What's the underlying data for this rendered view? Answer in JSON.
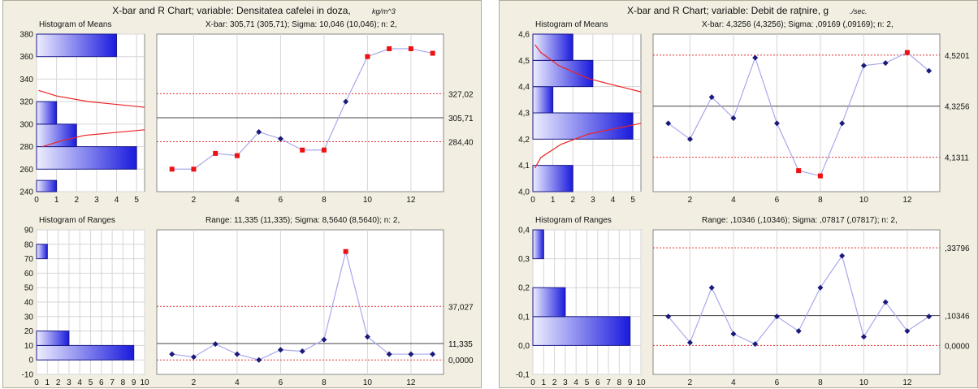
{
  "chart_data": [
    {
      "type": "control-chart",
      "title": "X-bar and R Chart; variable:  Densitatea cafelei in doza,",
      "title_unit": "kg/m^3",
      "means_hist_title": "Histogram of Means",
      "means_subtitle": "X-bar: 305,71 (305,71); Sigma: 10,046 (10,046); n: 2,",
      "ranges_hist_title": "Histogram of Ranges",
      "ranges_subtitle": "Range: 11,335 (11,335); Sigma: 8,5640 (8,5640); n: 2,",
      "xbar_chart": {
        "x": [
          1,
          2,
          3,
          4,
          5,
          6,
          7,
          8,
          9,
          10,
          11,
          12,
          13
        ],
        "values": [
          260,
          260,
          274,
          272,
          293,
          287,
          277,
          277,
          320,
          360,
          367,
          367,
          363
        ],
        "out_of_control": [
          true,
          true,
          true,
          true,
          false,
          false,
          true,
          true,
          false,
          true,
          true,
          true,
          true
        ],
        "ucl": 327.02,
        "center": 305.71,
        "lcl": 284.4,
        "ucl_label": "327,02",
        "center_label": "305,71",
        "lcl_label": "284,40",
        "x_ticks": [
          "2",
          "4",
          "6",
          "8",
          "10",
          "12"
        ],
        "ylim": [
          240,
          380
        ]
      },
      "r_chart": {
        "x": [
          1,
          2,
          3,
          4,
          5,
          6,
          7,
          8,
          9,
          10,
          11,
          12,
          13
        ],
        "values": [
          4,
          2,
          11,
          4,
          0,
          7,
          6,
          14,
          75,
          16,
          4,
          4,
          4
        ],
        "out_of_control": [
          false,
          false,
          false,
          false,
          false,
          false,
          false,
          false,
          true,
          false,
          false,
          false,
          false
        ],
        "ucl": 37.027,
        "center": 11.335,
        "lcl": 0,
        "ucl_label": "37,027",
        "center_label": "11,335",
        "lcl_label": "0,0000",
        "x_ticks": [
          "2",
          "4",
          "6",
          "8",
          "10",
          "12"
        ],
        "ylim": [
          -10,
          90
        ]
      },
      "means_histogram": {
        "y_ticks": [
          "240",
          "260",
          "280",
          "300",
          "320",
          "340",
          "360",
          "380"
        ],
        "x_ticks": [
          "0",
          "1",
          "2",
          "3",
          "4",
          "5"
        ],
        "xlim": [
          0,
          5.4
        ],
        "ylim": [
          240,
          380
        ],
        "bins": [
          [
            240,
            250,
            1
          ],
          [
            250,
            260,
            0
          ],
          [
            260,
            280,
            5
          ],
          [
            280,
            300,
            2
          ],
          [
            300,
            320,
            1
          ],
          [
            340,
            360,
            0
          ],
          [
            360,
            380,
            4
          ]
        ],
        "curve": [
          [
            280,
            0.3
          ],
          [
            285,
            1.2
          ],
          [
            290,
            2.4
          ],
          [
            295,
            5.4
          ]
        ],
        "curve2": [
          [
            315,
            5.4
          ],
          [
            320,
            2.6
          ],
          [
            325,
            1.0
          ],
          [
            330,
            0.1
          ]
        ]
      },
      "ranges_histogram": {
        "y_ticks": [
          "-10",
          "0",
          "10",
          "20",
          "30",
          "40",
          "50",
          "60",
          "70",
          "80",
          "90"
        ],
        "x_ticks": [
          "0",
          "1",
          "2",
          "3",
          "4",
          "5",
          "6",
          "7",
          "8",
          "9",
          "10"
        ],
        "xlim": [
          0,
          10
        ],
        "ylim": [
          -10,
          90
        ],
        "bins": [
          [
            0,
            10,
            9
          ],
          [
            10,
            20,
            3
          ],
          [
            70,
            80,
            1
          ]
        ]
      }
    },
    {
      "type": "control-chart",
      "title": "X-bar and R Chart; variable:  Debit de rațnire, g",
      "title_unit": "./sec.",
      "means_hist_title": "Histogram of Means",
      "means_subtitle": "X-bar: 4,3256 (4,3256); Sigma: ,09169 (,09169); n: 2,",
      "ranges_hist_title": "Histogram of Ranges",
      "ranges_subtitle": "Range: ,10346 (,10346); Sigma: ,07817 (,07817); n: 2,",
      "xbar_chart": {
        "x": [
          1,
          2,
          3,
          4,
          5,
          6,
          7,
          8,
          9,
          10,
          11,
          12,
          13
        ],
        "values": [
          4.26,
          4.2,
          4.36,
          4.28,
          4.51,
          4.26,
          4.08,
          4.06,
          4.26,
          4.48,
          4.49,
          4.53,
          4.46
        ],
        "out_of_control": [
          false,
          false,
          false,
          false,
          false,
          false,
          true,
          true,
          false,
          false,
          false,
          true,
          false
        ],
        "ucl": 4.5201,
        "center": 4.3256,
        "lcl": 4.1311,
        "ucl_label": "4,5201",
        "center_label": "4,3256",
        "lcl_label": "4,1311",
        "x_ticks": [
          "2",
          "4",
          "6",
          "8",
          "10",
          "12"
        ],
        "ylim": [
          4.0,
          4.6
        ]
      },
      "r_chart": {
        "x": [
          1,
          2,
          3,
          4,
          5,
          6,
          7,
          8,
          9,
          10,
          11,
          12,
          13
        ],
        "values": [
          0.1,
          0.01,
          0.2,
          0.04,
          0.005,
          0.1,
          0.05,
          0.2,
          0.31,
          0.03,
          0.15,
          0.05,
          0.1
        ],
        "out_of_control": [
          false,
          false,
          false,
          false,
          false,
          false,
          false,
          false,
          false,
          false,
          false,
          false,
          false
        ],
        "ucl": 0.33796,
        "center": 0.10346,
        "lcl": 0,
        "ucl_label": ",33796",
        "center_label": ",10346",
        "lcl_label": "0,0000",
        "x_ticks": [
          "2",
          "4",
          "6",
          "8",
          "10",
          "12"
        ],
        "ylim": [
          -0.1,
          0.4
        ]
      },
      "means_histogram": {
        "y_ticks": [
          "4,0",
          "4,1",
          "4,2",
          "4,3",
          "4,4",
          "4,5",
          "4,6"
        ],
        "x_ticks": [
          "0",
          "1",
          "2",
          "3",
          "4",
          "5"
        ],
        "xlim": [
          0,
          5.4
        ],
        "ylim": [
          4.0,
          4.6
        ],
        "bins": [
          [
            4.0,
            4.1,
            2
          ],
          [
            4.1,
            4.2,
            0
          ],
          [
            4.2,
            4.3,
            5
          ],
          [
            4.3,
            4.4,
            1
          ],
          [
            4.4,
            4.5,
            3
          ],
          [
            4.5,
            4.6,
            2
          ]
        ],
        "curve": [
          [
            4.09,
            0.1
          ],
          [
            4.13,
            0.4
          ],
          [
            4.18,
            1.4
          ],
          [
            4.22,
            2.8
          ],
          [
            4.26,
            5.4
          ]
        ],
        "curve2": [
          [
            4.38,
            5.4
          ],
          [
            4.43,
            2.8
          ],
          [
            4.48,
            1.3
          ],
          [
            4.53,
            0.4
          ],
          [
            4.56,
            0.1
          ]
        ]
      },
      "ranges_histogram": {
        "y_ticks": [
          "-0,1",
          "0,0",
          "0,1",
          "0,2",
          "0,3",
          "0,4"
        ],
        "x_ticks": [
          "0",
          "1",
          "2",
          "3",
          "4",
          "5",
          "6",
          "7",
          "8",
          "9",
          "10"
        ],
        "xlim": [
          0,
          10
        ],
        "ylim": [
          -0.1,
          0.4
        ],
        "bins": [
          [
            0.0,
            0.1,
            9
          ],
          [
            0.1,
            0.2,
            3
          ],
          [
            0.3,
            0.4,
            1
          ]
        ]
      }
    }
  ],
  "colors": {
    "panel_bg": "#f2efe2",
    "plot_bg": "#ffffff",
    "grid": "#d6d6d6",
    "line": "#a8a8ee",
    "point_normal": "#1a1a7a",
    "point_alarm": "#ee1111",
    "limit": "#dd3333",
    "center": "#444444",
    "bar_dark": "#1a1add",
    "bar_light": "#eeeeff",
    "curve": "#ee2222"
  }
}
